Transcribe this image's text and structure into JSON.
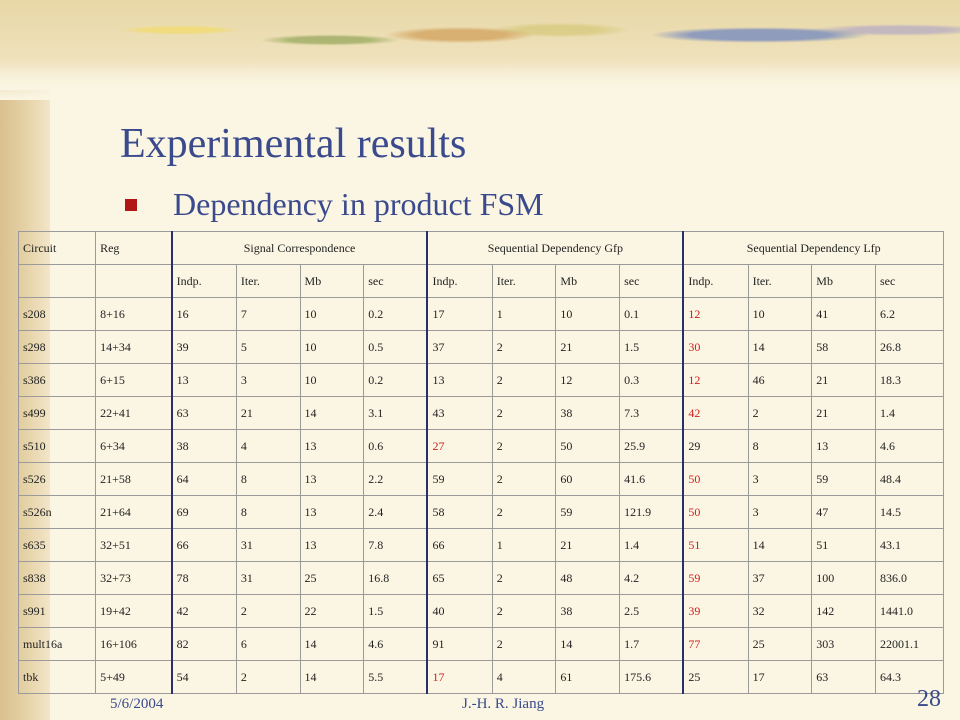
{
  "slide": {
    "title": "Experimental results",
    "bullet": "Dependency in product FSM",
    "footer_date": "5/6/2004",
    "footer_author": "J.-H. R. Jiang",
    "page_number": "28"
  },
  "table": {
    "circuit_header": "Circuit",
    "reg_header": "Reg",
    "groups": [
      "Signal Correspondence",
      "Sequential Dependency Gfp",
      "Sequential Dependency Lfp"
    ],
    "subheaders": [
      "Indp.",
      "Iter.",
      "Mb",
      "sec"
    ],
    "rows": [
      {
        "circuit": "s208",
        "reg": "8+16",
        "sc": [
          "16",
          "7",
          "10",
          "0.2"
        ],
        "gfp": [
          "17",
          "1",
          "10",
          "0.1"
        ],
        "lfp": [
          "12",
          "10",
          "41",
          "6.2"
        ]
      },
      {
        "circuit": "s298",
        "reg": "14+34",
        "sc": [
          "39",
          "5",
          "10",
          "0.5"
        ],
        "gfp": [
          "37",
          "2",
          "21",
          "1.5"
        ],
        "lfp": [
          "30",
          "14",
          "58",
          "26.8"
        ]
      },
      {
        "circuit": "s386",
        "reg": "6+15",
        "sc": [
          "13",
          "3",
          "10",
          "0.2"
        ],
        "gfp": [
          "13",
          "2",
          "12",
          "0.3"
        ],
        "lfp": [
          "12",
          "46",
          "21",
          "18.3"
        ]
      },
      {
        "circuit": "s499",
        "reg": "22+41",
        "sc": [
          "63",
          "21",
          "14",
          "3.1"
        ],
        "gfp": [
          "43",
          "2",
          "38",
          "7.3"
        ],
        "lfp": [
          "42",
          "2",
          "21",
          "1.4"
        ]
      },
      {
        "circuit": "s510",
        "reg": "6+34",
        "sc": [
          "38",
          "4",
          "13",
          "0.6"
        ],
        "gfp": [
          "27",
          "2",
          "50",
          "25.9"
        ],
        "lfp": [
          "29",
          "8",
          "13",
          "4.6"
        ]
      },
      {
        "circuit": "s526",
        "reg": "21+58",
        "sc": [
          "64",
          "8",
          "13",
          "2.2"
        ],
        "gfp": [
          "59",
          "2",
          "60",
          "41.6"
        ],
        "lfp": [
          "50",
          "3",
          "59",
          "48.4"
        ]
      },
      {
        "circuit": "s526n",
        "reg": "21+64",
        "sc": [
          "69",
          "8",
          "13",
          "2.4"
        ],
        "gfp": [
          "58",
          "2",
          "59",
          "121.9"
        ],
        "lfp": [
          "50",
          "3",
          "47",
          "14.5"
        ]
      },
      {
        "circuit": "s635",
        "reg": "32+51",
        "sc": [
          "66",
          "31",
          "13",
          "7.8"
        ],
        "gfp": [
          "66",
          "1",
          "21",
          "1.4"
        ],
        "lfp": [
          "51",
          "14",
          "51",
          "43.1"
        ]
      },
      {
        "circuit": "s838",
        "reg": "32+73",
        "sc": [
          "78",
          "31",
          "25",
          "16.8"
        ],
        "gfp": [
          "65",
          "2",
          "48",
          "4.2"
        ],
        "lfp": [
          "59",
          "37",
          "100",
          "836.0"
        ]
      },
      {
        "circuit": "s991",
        "reg": "19+42",
        "sc": [
          "42",
          "2",
          "22",
          "1.5"
        ],
        "gfp": [
          "40",
          "2",
          "38",
          "2.5"
        ],
        "lfp": [
          "39",
          "32",
          "142",
          "1441.0"
        ]
      },
      {
        "circuit": "mult16a",
        "reg": "16+106",
        "sc": [
          "82",
          "6",
          "14",
          "4.6"
        ],
        "gfp": [
          "91",
          "2",
          "14",
          "1.7"
        ],
        "lfp": [
          "77",
          "25",
          "303",
          "22001.1"
        ]
      },
      {
        "circuit": "tbk",
        "reg": "5+49",
        "sc": [
          "54",
          "2",
          "14",
          "5.5"
        ],
        "gfp": [
          "17",
          "4",
          "61",
          "175.6"
        ],
        "lfp": [
          "25",
          "17",
          "63",
          "64.3"
        ]
      }
    ],
    "highlight_color": "#d21c1c",
    "highlighted_cells": [
      "s208.lfp.indp",
      "s298.lfp.indp",
      "s386.lfp.indp",
      "s499.lfp.indp",
      "s510.gfp.indp",
      "s526.lfp.indp",
      "s526n.lfp.indp",
      "s635.lfp.indp",
      "s838.lfp.indp",
      "s991.lfp.indp",
      "mult16a.lfp.indp",
      "tbk.gfp.indp"
    ]
  }
}
